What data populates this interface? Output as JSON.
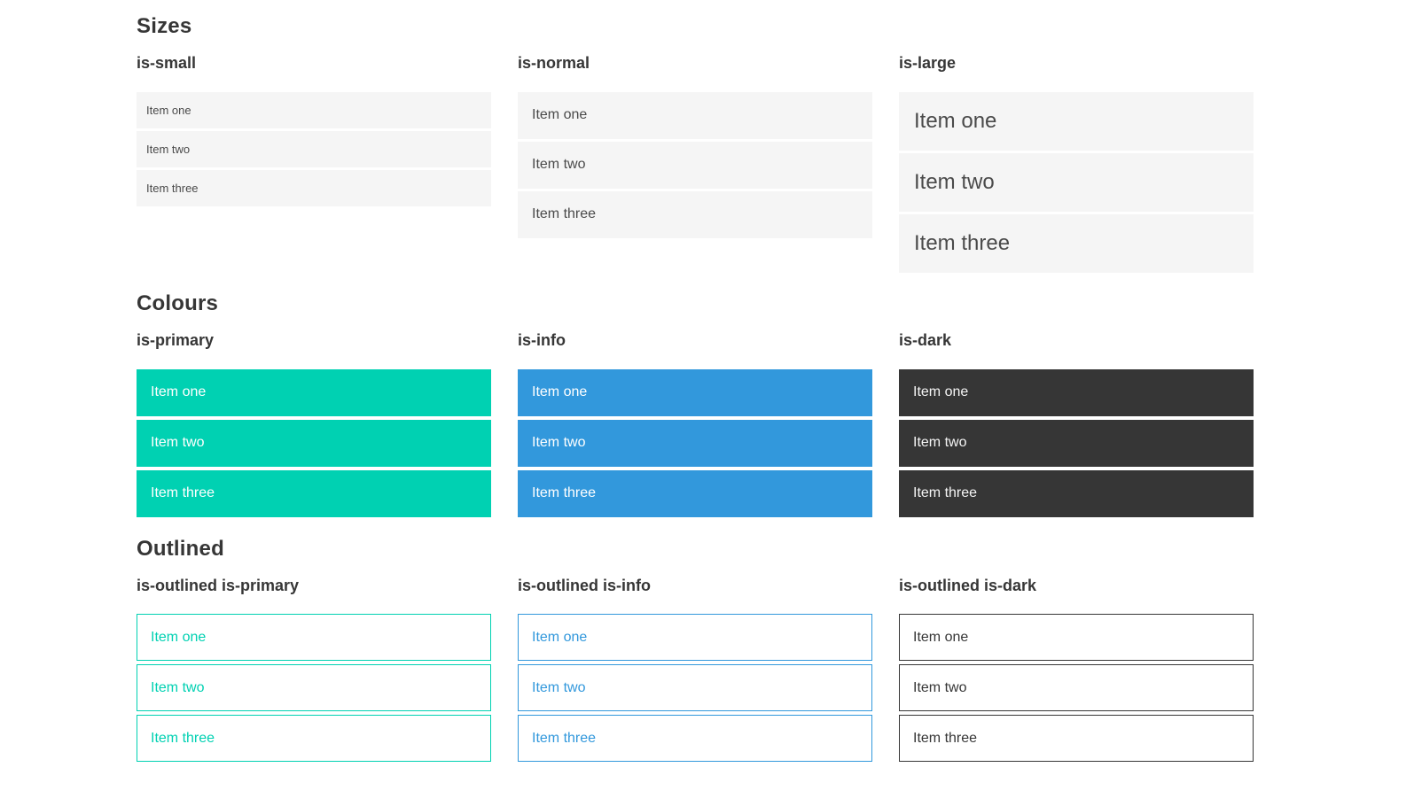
{
  "colors": {
    "primary": "#00d1b2",
    "info": "#3298dc",
    "dark": "#363636",
    "item_bg": "#f5f5f5",
    "text": "#4a4a4a",
    "heading": "#363636"
  },
  "sections": [
    {
      "title": "Sizes",
      "groups": [
        {
          "label": "is-small",
          "items": [
            "Item one",
            "Item two",
            "Item three"
          ]
        },
        {
          "label": "is-normal",
          "items": [
            "Item one",
            "Item two",
            "Item three"
          ]
        },
        {
          "label": "is-large",
          "items": [
            "Item one",
            "Item two",
            "Item three"
          ]
        }
      ]
    },
    {
      "title": "Colours",
      "groups": [
        {
          "label": "is-primary",
          "items": [
            "Item one",
            "Item two",
            "Item three"
          ]
        },
        {
          "label": "is-info",
          "items": [
            "Item one",
            "Item two",
            "Item three"
          ]
        },
        {
          "label": "is-dark",
          "items": [
            "Item one",
            "Item two",
            "Item three"
          ]
        }
      ]
    },
    {
      "title": "Outlined",
      "groups": [
        {
          "label": "is-outlined is-primary",
          "items": [
            "Item one",
            "Item two",
            "Item three"
          ]
        },
        {
          "label": "is-outlined is-info",
          "items": [
            "Item one",
            "Item two",
            "Item three"
          ]
        },
        {
          "label": "is-outlined is-dark",
          "items": [
            "Item one",
            "Item two",
            "Item three"
          ]
        }
      ]
    }
  ]
}
